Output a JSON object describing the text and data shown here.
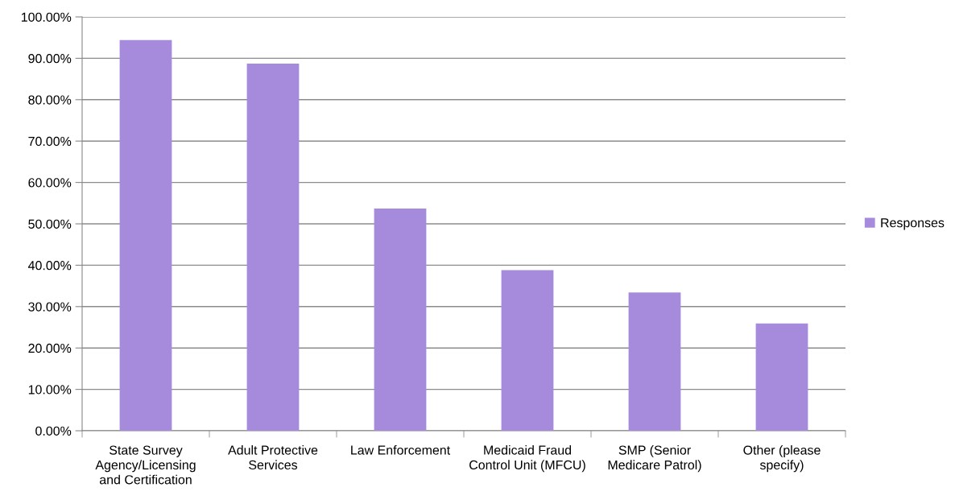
{
  "chart_data": {
    "type": "bar",
    "categories": [
      "State Survey Agency/Licensing and Certification",
      "Adult Protective Services",
      "Law Enforcement",
      "Medicaid Fraud Control Unit (MFCU)",
      "SMP (Senior Medicare Patrol)",
      "Other (please specify)"
    ],
    "series": [
      {
        "name": "Responses",
        "color": "#a68bdd",
        "values": [
          94.4,
          88.7,
          53.7,
          38.8,
          33.4,
          25.9
        ]
      }
    ],
    "ylim": [
      0,
      100
    ],
    "yticks": [
      {
        "value": 0,
        "label": "0.00%"
      },
      {
        "value": 10,
        "label": "10.00%"
      },
      {
        "value": 20,
        "label": "20.00%"
      },
      {
        "value": 30,
        "label": "30.00%"
      },
      {
        "value": 40,
        "label": "40.00%"
      },
      {
        "value": 50,
        "label": "50.00%"
      },
      {
        "value": 60,
        "label": "60.00%"
      },
      {
        "value": 70,
        "label": "70.00%"
      },
      {
        "value": 80,
        "label": "80.00%"
      },
      {
        "value": 90,
        "label": "90.00%"
      },
      {
        "value": 100,
        "label": "100.00%"
      }
    ],
    "grid": "y",
    "legend": "right"
  }
}
